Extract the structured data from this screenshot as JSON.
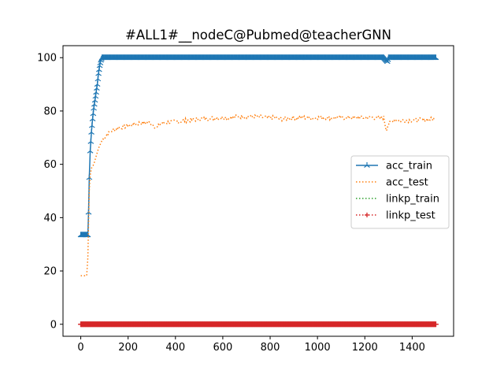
{
  "chart_data": {
    "type": "line",
    "title": "#ALL1#__nodeC@Pubmed@teacherGNN",
    "xlabel": "",
    "ylabel": "",
    "xlim": [
      -75,
      1575
    ],
    "ylim": [
      -4.5,
      104.5
    ],
    "xticks": [
      0,
      200,
      400,
      600,
      800,
      1000,
      1200,
      1400
    ],
    "yticks": [
      0,
      20,
      40,
      60,
      80,
      100
    ],
    "grid": false,
    "legend_position": "center-right",
    "series": [
      {
        "name": "acc_train",
        "color": "#1f77b4",
        "style": "solid",
        "marker": "tri_up",
        "points": [
          [
            0,
            33.5
          ],
          [
            30,
            33.5
          ],
          [
            33,
            42
          ],
          [
            36,
            55
          ],
          [
            40,
            65
          ],
          [
            45,
            72
          ],
          [
            50,
            77
          ],
          [
            55,
            81
          ],
          [
            60,
            84
          ],
          [
            65,
            87
          ],
          [
            70,
            90
          ],
          [
            75,
            94
          ],
          [
            80,
            97
          ],
          [
            85,
            99
          ],
          [
            90,
            100
          ],
          [
            1280,
            100
          ],
          [
            1295,
            98.5
          ],
          [
            1300,
            100
          ],
          [
            1500,
            100
          ]
        ]
      },
      {
        "name": "acc_test",
        "color": "#ff7f0e",
        "style": "dotted",
        "marker": "",
        "points": [
          [
            0,
            18.2
          ],
          [
            25,
            18.2
          ],
          [
            30,
            25
          ],
          [
            33,
            38
          ],
          [
            36,
            50
          ],
          [
            40,
            56
          ],
          [
            45,
            58.5
          ],
          [
            55,
            60
          ],
          [
            65,
            63
          ],
          [
            75,
            66
          ],
          [
            90,
            69
          ],
          [
            110,
            71
          ],
          [
            130,
            72.5
          ],
          [
            150,
            73.5
          ],
          [
            175,
            74
          ],
          [
            200,
            74.5
          ],
          [
            250,
            75.5
          ],
          [
            300,
            75.5
          ],
          [
            320,
            73.5
          ],
          [
            340,
            75.5
          ],
          [
            400,
            76
          ],
          [
            450,
            76.5
          ],
          [
            500,
            77
          ],
          [
            600,
            77.5
          ],
          [
            700,
            78
          ],
          [
            800,
            77.5
          ],
          [
            850,
            77
          ],
          [
            900,
            77.5
          ],
          [
            1000,
            77.5
          ],
          [
            1100,
            77.5
          ],
          [
            1200,
            77.5
          ],
          [
            1280,
            77.5
          ],
          [
            1290,
            73
          ],
          [
            1300,
            75
          ],
          [
            1320,
            76.5
          ],
          [
            1400,
            76.5
          ],
          [
            1500,
            77
          ]
        ]
      },
      {
        "name": "linkp_train",
        "color": "#2ca02c",
        "style": "dotted",
        "marker": "",
        "points": [
          [
            0,
            0
          ],
          [
            1500,
            0
          ]
        ]
      },
      {
        "name": "linkp_test",
        "color": "#d62728",
        "style": "dotted",
        "marker": "plus",
        "points": [
          [
            0,
            0
          ],
          [
            1500,
            0
          ]
        ]
      }
    ]
  }
}
